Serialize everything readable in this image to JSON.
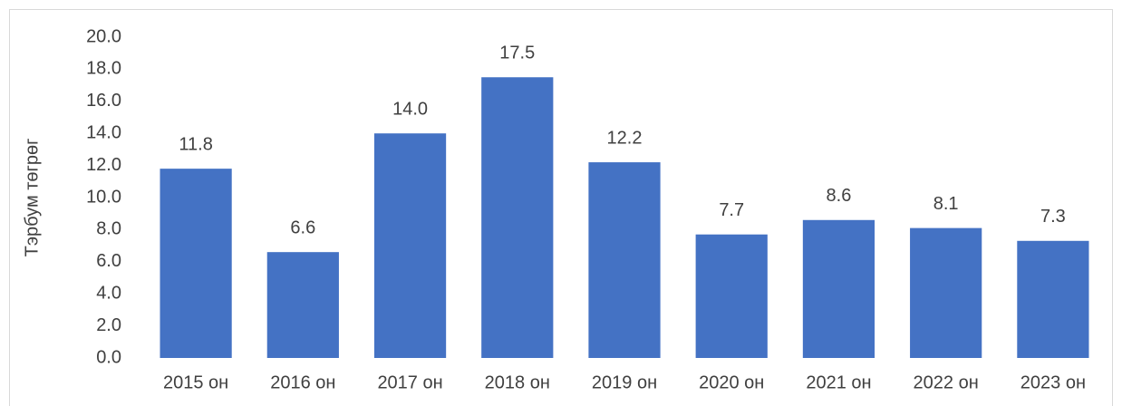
{
  "chart_data": {
    "type": "bar",
    "y_label": "Тэрбум төгрөг",
    "categories": [
      "2015 он",
      "2016 он",
      "2017 он",
      "2018 он",
      "2019 он",
      "2020 он",
      "2021 он",
      "2022 он",
      "2023 он"
    ],
    "values": [
      11.8,
      6.6,
      14.0,
      17.5,
      12.2,
      7.7,
      8.6,
      8.1,
      7.3
    ],
    "value_labels": [
      "11.8",
      "6.6",
      "14.0",
      "17.5",
      "12.2",
      "7.7",
      "8.6",
      "8.1",
      "7.3"
    ],
    "color": "#4472c4",
    "ylim": [
      0,
      20
    ],
    "yticks": [
      {
        "value": 0,
        "label": "0.0"
      },
      {
        "value": 2,
        "label": "2.0"
      },
      {
        "value": 4,
        "label": "4.0"
      },
      {
        "value": 6,
        "label": "6.0"
      },
      {
        "value": 8,
        "label": "8.0"
      },
      {
        "value": 10,
        "label": "10.0"
      },
      {
        "value": 12,
        "label": "12.0"
      },
      {
        "value": 14,
        "label": "14.0"
      },
      {
        "value": 16,
        "label": "16.0"
      },
      {
        "value": 18,
        "label": "18.0"
      },
      {
        "value": 20,
        "label": "20.0"
      }
    ],
    "grid": false
  }
}
